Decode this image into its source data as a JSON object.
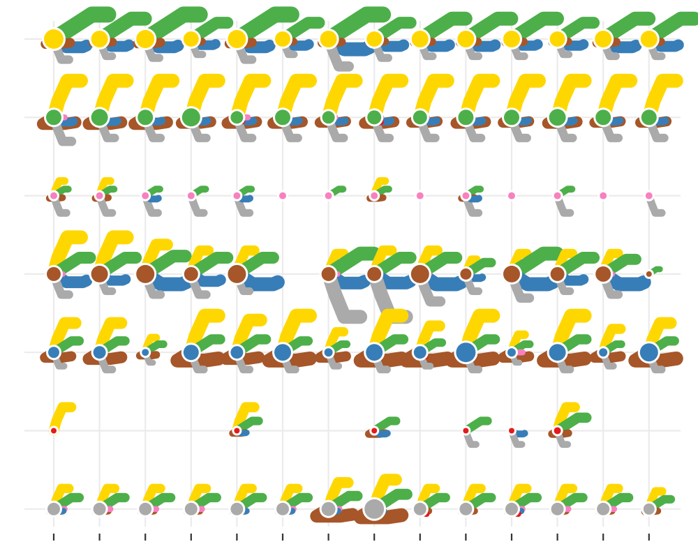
{
  "chart_data": {
    "type": "scatter",
    "title": "",
    "xlabel": "",
    "ylabel": "",
    "x": [
      1,
      2,
      3,
      4,
      5,
      6,
      7,
      8,
      9,
      10,
      11,
      12,
      13,
      14
    ],
    "rows": [
      1,
      2,
      3,
      4,
      5,
      6,
      7
    ],
    "grid": true,
    "legend": "none",
    "background": "#ffffff",
    "grid_color": "#ebebeb",
    "palette": {
      "yellow": "#FFD700",
      "green": "#4DAF4A",
      "blue": "#377EB8",
      "brown": "#A65628",
      "grey": "#AAAAAA",
      "pink": "#F781BF",
      "red": "#E41A1C"
    },
    "glyph_rows": [
      {
        "row": 1,
        "center_series": "yellow",
        "center_sizes": [
          14,
          12,
          13,
          11,
          13,
          11,
          12,
          11,
          12,
          12,
          12,
          11,
          12,
          12
        ],
        "spokes": {
          "green": [
            3,
            2.5,
            3,
            2,
            3,
            2,
            3,
            2,
            2.5,
            2.5,
            2.5,
            2,
            2.5,
            2.5
          ],
          "blue": [
            2,
            1.8,
            2,
            1.5,
            2,
            1.6,
            2.5,
            1.8,
            1.8,
            1.8,
            1.6,
            1.6,
            2,
            1.8
          ],
          "brown": [
            1.5,
            1.2,
            1.4,
            1.0,
            1.4,
            1.0,
            1.2,
            1.0,
            1.1,
            1.1,
            1.1,
            1.0,
            1.2,
            1.1
          ],
          "grey": [
            1.2,
            1.0,
            1.1,
            0.9,
            1.2,
            0.9,
            1.6,
            1.1,
            1.0,
            1.0,
            1.0,
            0.9,
            1.0,
            1.0
          ],
          "red": [
            0.0,
            0.3,
            0.0,
            0.0,
            0.3,
            0.2,
            0.0,
            0.3,
            0.0,
            0.0,
            0.0,
            0.0,
            0.0,
            0.0
          ]
        }
      },
      {
        "row": 2,
        "center_series": "green",
        "center_sizes": [
          11,
          12,
          11,
          13,
          9,
          11,
          9,
          10,
          10,
          11,
          11,
          12,
          11,
          11
        ],
        "spokes": {
          "yellow": [
            2.5,
            2.5,
            2.5,
            2.5,
            2.5,
            2.5,
            2.5,
            2.5,
            2.5,
            2.5,
            2.5,
            2.5,
            2.5,
            2.5
          ],
          "brown": [
            2.0,
            2.0,
            2.0,
            1.8,
            1.8,
            1.8,
            1.6,
            1.8,
            1.6,
            1.8,
            1.6,
            1.8,
            1.6,
            1.6
          ],
          "blue": [
            1.2,
            1.1,
            1.0,
            1.0,
            1.0,
            1.0,
            1.0,
            1.0,
            1.0,
            1.0,
            1.0,
            1.0,
            1.0,
            1.0
          ],
          "grey": [
            1.4,
            1.2,
            1.2,
            1.2,
            1.2,
            1.2,
            1.2,
            1.2,
            1.2,
            1.2,
            1.2,
            1.2,
            1.2,
            1.2
          ],
          "pink": [
            0.6,
            0.4,
            0.0,
            0.0,
            0.6,
            0.4,
            0.4,
            0.4,
            0.4,
            0.4,
            0.0,
            0.0,
            0.4,
            0.0
          ],
          "red": [
            0.0,
            0.0,
            0.0,
            0.0,
            0.5,
            0.4,
            0.0,
            0.6,
            0.0,
            0.5,
            0.0,
            0.5,
            0.0,
            0.0
          ]
        }
      },
      {
        "row": 3,
        "center_series": "pink",
        "center_sizes": [
          5,
          5,
          5,
          5,
          5,
          5,
          5,
          5,
          5,
          5,
          5,
          5,
          5,
          5
        ],
        "spokes": {
          "yellow": [
            1.0,
            1.0,
            0.0,
            0.0,
            0.0,
            0.0,
            0.0,
            1.0,
            0.0,
            0.0,
            0.0,
            0.0,
            0.0,
            0.0
          ],
          "green": [
            0.8,
            0.8,
            0.8,
            0.8,
            0.8,
            0.0,
            0.8,
            0.8,
            0.0,
            0.8,
            0.0,
            0.8,
            0.0,
            0.0
          ],
          "brown": [
            0.8,
            0.8,
            0.0,
            0.0,
            0.0,
            0.0,
            0.0,
            0.8,
            0.0,
            0.8,
            0.0,
            0.0,
            0.0,
            0.0
          ],
          "grey": [
            1.0,
            1.0,
            1.0,
            1.0,
            1.0,
            0.0,
            0.0,
            0.0,
            0.0,
            1.0,
            0.0,
            1.0,
            0.0,
            1.0
          ],
          "blue": [
            0.0,
            0.0,
            0.8,
            0.0,
            0.8,
            0.0,
            0.0,
            0.0,
            0.0,
            0.8,
            0.0,
            0.0,
            0.0,
            0.0
          ]
        }
      },
      {
        "row": 4,
        "center_series": "brown",
        "center_sizes": [
          10,
          12,
          13,
          10,
          13,
          0,
          10,
          10,
          13,
          8,
          12,
          10,
          11,
          4
        ],
        "spokes": {
          "yellow": [
            2.5,
            2.5,
            2.0,
            1.6,
            1.6,
            0.0,
            1.4,
            1.6,
            1.6,
            1.0,
            1.4,
            1.4,
            1.4,
            0.0
          ],
          "green": [
            2.0,
            2.0,
            2.2,
            2.0,
            2.0,
            0.0,
            2.5,
            2.0,
            2.0,
            1.4,
            2.5,
            2.0,
            1.8,
            0.6
          ],
          "blue": [
            2.0,
            1.6,
            2.5,
            1.8,
            2.5,
            0.0,
            2.2,
            2.2,
            2.5,
            1.0,
            2.5,
            1.6,
            2.5,
            0.0
          ],
          "grey": [
            1.2,
            1.0,
            1.2,
            1.2,
            1.0,
            0.0,
            2.5,
            2.5,
            1.6,
            1.0,
            1.4,
            1.0,
            1.2,
            0.0
          ],
          "pink": [
            0.5,
            0.0,
            0.0,
            0.0,
            0.0,
            0.0,
            0.5,
            0.0,
            0.5,
            0.0,
            0.0,
            0.0,
            0.5,
            0.0
          ],
          "red": [
            0.0,
            0.0,
            0.0,
            0.5,
            0.0,
            0.0,
            0.0,
            0.0,
            0.0,
            0.0,
            0.0,
            0.0,
            0.0,
            0.0
          ]
        }
      },
      {
        "row": 5,
        "center_series": "blue",
        "center_sizes": [
          8,
          9,
          5,
          11,
          9,
          12,
          6,
          12,
          9,
          14,
          6,
          12,
          6,
          13
        ],
        "spokes": {
          "yellow": [
            2.0,
            2.0,
            1.0,
            2.5,
            2.2,
            2.5,
            1.4,
            2.5,
            1.8,
            2.5,
            1.2,
            2.5,
            1.6,
            2.0
          ],
          "green": [
            1.4,
            1.4,
            1.0,
            1.6,
            1.6,
            1.4,
            1.0,
            1.6,
            1.2,
            1.6,
            1.0,
            1.6,
            1.0,
            1.4
          ],
          "brown": [
            1.6,
            2.0,
            1.0,
            2.5,
            2.0,
            2.5,
            1.6,
            2.5,
            2.5,
            2.5,
            1.6,
            2.5,
            1.6,
            2.5
          ],
          "grey": [
            0.8,
            1.0,
            0.6,
            1.0,
            1.0,
            1.0,
            0.8,
            1.0,
            0.8,
            1.0,
            0.6,
            1.0,
            0.8,
            1.0
          ],
          "red": [
            0.0,
            0.0,
            0.0,
            0.5,
            0.0,
            0.0,
            0.0,
            0.5,
            0.5,
            0.5,
            0.0,
            0.5,
            0.0,
            0.0
          ],
          "pink": [
            0.0,
            0.0,
            0.0,
            0.0,
            0.0,
            0.0,
            0.0,
            0.0,
            0.0,
            0.0,
            0.6,
            0.0,
            0.0,
            0.0
          ]
        }
      },
      {
        "row": 6,
        "center_series": "red",
        "center_sizes": [
          4,
          0,
          0,
          0,
          4,
          0,
          0,
          4,
          0,
          4,
          4,
          5,
          0,
          0
        ],
        "spokes": {
          "yellow": [
            1.6,
            0.0,
            0.0,
            0.0,
            1.6,
            0.0,
            0.0,
            0.0,
            0.0,
            0.0,
            0.0,
            1.6,
            0.0,
            0.0
          ],
          "green": [
            0.0,
            0.0,
            0.0,
            0.0,
            1.2,
            0.0,
            0.0,
            1.2,
            0.0,
            1.2,
            0.0,
            1.6,
            0.0,
            0.0
          ],
          "brown": [
            0.0,
            0.0,
            0.0,
            0.0,
            0.8,
            0.0,
            0.0,
            1.0,
            0.0,
            0.0,
            0.0,
            1.0,
            0.0,
            0.0
          ],
          "blue": [
            0.0,
            0.0,
            0.0,
            0.0,
            0.6,
            0.0,
            0.0,
            0.8,
            0.0,
            0.0,
            0.8,
            0.0,
            0.0,
            0.0
          ],
          "grey": [
            0.0,
            0.0,
            0.0,
            0.0,
            0.0,
            0.0,
            0.0,
            0.0,
            0.0,
            0.8,
            0.8,
            0.8,
            0.0,
            0.0
          ]
        }
      },
      {
        "row": 7,
        "center_series": "grey",
        "center_sizes": [
          9,
          9,
          9,
          9,
          9,
          9,
          10,
          14,
          9,
          9,
          9,
          9,
          9,
          8
        ],
        "spokes": {
          "yellow": [
            1.4,
            1.4,
            1.4,
            1.4,
            1.4,
            1.4,
            1.8,
            2.0,
            1.4,
            1.4,
            1.4,
            1.4,
            1.4,
            1.2
          ],
          "green": [
            1.4,
            1.4,
            1.4,
            1.4,
            1.4,
            1.4,
            1.6,
            1.8,
            1.4,
            1.4,
            1.4,
            1.4,
            1.4,
            1.2
          ],
          "brown": [
            0.8,
            0.8,
            0.8,
            0.8,
            0.8,
            0.8,
            2.2,
            2.5,
            0.8,
            0.8,
            0.8,
            0.8,
            0.8,
            0.8
          ],
          "pink": [
            0.6,
            0.6,
            0.6,
            0.6,
            0.0,
            0.6,
            0.6,
            0.0,
            0.0,
            0.0,
            0.6,
            0.6,
            0.6,
            0.0
          ],
          "blue": [
            0.6,
            0.0,
            0.0,
            0.0,
            0.6,
            0.6,
            0.6,
            0.6,
            0.0,
            0.0,
            0.6,
            0.0,
            0.0,
            0.0
          ],
          "red": [
            0.0,
            0.0,
            0.0,
            0.0,
            0.0,
            0.0,
            0.0,
            0.0,
            0.6,
            0.0,
            0.6,
            0.0,
            0.0,
            0.0
          ]
        }
      }
    ]
  }
}
